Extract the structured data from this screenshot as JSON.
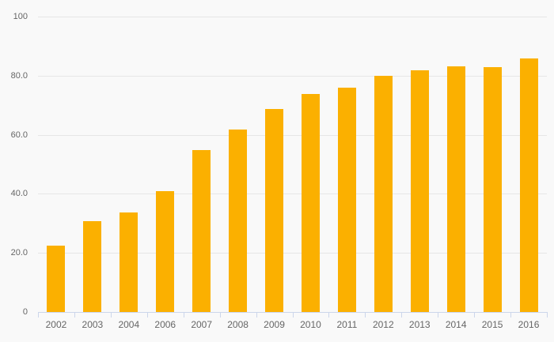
{
  "chart_data": {
    "type": "bar",
    "title": "",
    "xlabel": "",
    "ylabel": "",
    "legend": false,
    "grid": true,
    "ylim": [
      0,
      100
    ],
    "categories": [
      "2002",
      "2003",
      "2004",
      "2006",
      "2007",
      "2008",
      "2009",
      "2010",
      "2011",
      "2012",
      "2013",
      "2014",
      "2015",
      "2016"
    ],
    "values": [
      22.5,
      30.8,
      33.7,
      40.8,
      54.8,
      61.7,
      68.8,
      73.7,
      76.0,
      80.0,
      81.8,
      83.1,
      83.0,
      85.8
    ],
    "y_ticks": [
      {
        "value": 0,
        "label": "0"
      },
      {
        "value": 20,
        "label": "20.0"
      },
      {
        "value": 40,
        "label": "40.0"
      },
      {
        "value": 60,
        "label": "60.0"
      },
      {
        "value": 80,
        "label": "80.0"
      },
      {
        "value": 100,
        "label": "100"
      }
    ],
    "colors": {
      "bar": "#FBB000",
      "background": "#F9F9F9",
      "gridline": "#E6E6E6",
      "axis_line": "#CCD6EB",
      "label_text": "#666666"
    }
  }
}
